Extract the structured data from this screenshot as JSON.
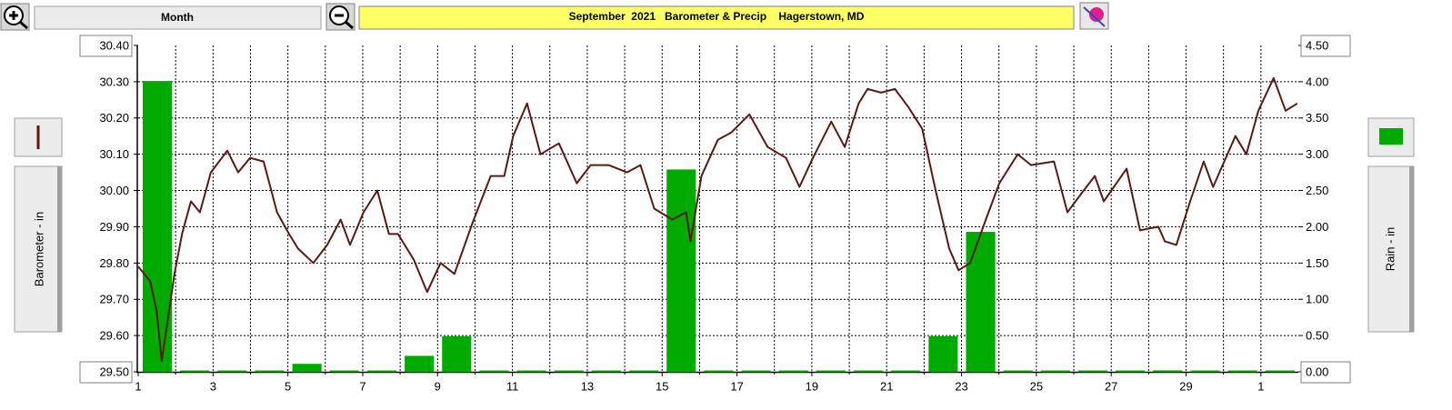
{
  "toolbar": {
    "range_button": "Month"
  },
  "chart_data": {
    "type": "combo",
    "title": "September  2021   Barometer & Precip    Hagerstown, MD",
    "ylabel": "Barometer - in",
    "y2label": "Rain - in",
    "xlim": [
      1,
      32
    ],
    "xticks": [
      1,
      3,
      5,
      7,
      9,
      11,
      13,
      15,
      17,
      19,
      21,
      23,
      25,
      27,
      29,
      {
        "value": 31,
        "label": "1"
      }
    ],
    "minor_xticks": [
      2,
      4,
      6,
      8,
      10,
      12,
      14,
      16,
      18,
      20,
      22,
      24,
      26,
      28,
      30
    ],
    "ylim": [
      29.5,
      30.4
    ],
    "yticks": [
      {
        "value": 29.5,
        "label": "29.50"
      },
      {
        "value": 29.6,
        "label": "29.60"
      },
      {
        "value": 29.7,
        "label": "29.70"
      },
      {
        "value": 29.8,
        "label": "29.80"
      },
      {
        "value": 29.9,
        "label": "29.90"
      },
      {
        "value": 30.0,
        "label": "30.00"
      },
      {
        "value": 30.1,
        "label": "30.10"
      },
      {
        "value": 30.2,
        "label": "30.20"
      },
      {
        "value": 30.3,
        "label": "30.30"
      },
      {
        "value": 30.4,
        "label": "30.40"
      }
    ],
    "y2lim": [
      0,
      4.5
    ],
    "y2ticks": [
      {
        "value": 0,
        "label": "0.00"
      },
      {
        "value": 0.5,
        "label": "0.50"
      },
      {
        "value": 1,
        "label": "1.00"
      },
      {
        "value": 1.5,
        "label": "1.50"
      },
      {
        "value": 2,
        "label": "2.00"
      },
      {
        "value": 2.5,
        "label": "2.50"
      },
      {
        "value": 3,
        "label": "3.00"
      },
      {
        "value": 3.5,
        "label": "3.50"
      },
      {
        "value": 4,
        "label": "4.00"
      },
      {
        "value": 4.5,
        "label": "4.50"
      }
    ],
    "grid": true,
    "series": [
      {
        "type": "line",
        "color": "#5a1a10",
        "x": [
          1.0,
          1.32,
          1.49,
          1.63,
          1.8,
          1.97,
          2.17,
          2.41,
          2.65,
          2.94,
          3.38,
          3.67,
          3.99,
          4.35,
          4.71,
          5.03,
          5.27,
          5.68,
          6.05,
          6.41,
          6.66,
          7.02,
          7.39,
          7.7,
          7.94,
          8.36,
          8.72,
          9.08,
          9.45,
          9.93,
          10.42,
          10.78,
          11.02,
          11.39,
          11.75,
          12.24,
          12.72,
          13.09,
          13.57,
          14.06,
          14.42,
          14.79,
          15.27,
          15.64,
          15.76,
          16.05,
          16.49,
          16.85,
          17.33,
          17.82,
          18.31,
          18.67,
          19.03,
          19.52,
          19.88,
          20.25,
          20.49,
          20.85,
          21.22,
          21.58,
          21.95,
          22.31,
          22.67,
          22.92,
          23.23,
          23.65,
          24.01,
          24.5,
          24.86,
          25.47,
          25.83,
          26.19,
          26.56,
          26.8,
          27.41,
          27.77,
          28.26,
          28.43,
          28.74,
          29.11,
          29.47,
          29.72,
          30.32,
          30.61,
          30.93,
          31.34,
          31.66,
          31.97
        ],
        "values": [
          29.79,
          29.75,
          29.67,
          29.53,
          29.65,
          29.77,
          29.88,
          29.97,
          29.94,
          30.05,
          30.11,
          30.05,
          30.09,
          30.08,
          29.94,
          29.88,
          29.84,
          29.8,
          29.85,
          29.92,
          29.85,
          29.94,
          30.0,
          29.88,
          29.88,
          29.81,
          29.72,
          29.8,
          29.77,
          29.91,
          30.04,
          30.04,
          30.15,
          30.24,
          30.1,
          30.13,
          30.02,
          30.07,
          30.07,
          30.05,
          30.07,
          29.95,
          29.92,
          29.94,
          29.86,
          30.04,
          30.14,
          30.16,
          30.21,
          30.12,
          30.09,
          30.01,
          30.09,
          30.19,
          30.12,
          30.24,
          30.28,
          30.27,
          30.28,
          30.23,
          30.17,
          30.0,
          29.84,
          29.78,
          29.8,
          29.92,
          30.02,
          30.1,
          30.07,
          30.08,
          29.94,
          29.99,
          30.04,
          29.97,
          30.06,
          29.89,
          29.9,
          29.86,
          29.85,
          29.97,
          30.08,
          30.01,
          30.15,
          30.1,
          30.22,
          30.31,
          30.22,
          30.24
        ]
      },
      {
        "type": "bar",
        "color": "#00aa00",
        "axis": "y2",
        "x": [
          1,
          2,
          3,
          4,
          5,
          6,
          7,
          8,
          9,
          10,
          11,
          12,
          13,
          14,
          15,
          16,
          17,
          18,
          19,
          20,
          21,
          22,
          23,
          24,
          25,
          26,
          27,
          28,
          29,
          30,
          31
        ],
        "values": [
          4.01,
          0,
          0,
          0,
          0.11,
          0,
          0,
          0.22,
          0.49,
          0,
          0,
          0,
          0,
          0,
          2.79,
          0,
          0,
          0,
          0,
          0,
          0,
          0.49,
          1.93,
          0,
          0,
          0,
          0,
          0.02,
          0,
          0,
          0
        ]
      }
    ]
  }
}
